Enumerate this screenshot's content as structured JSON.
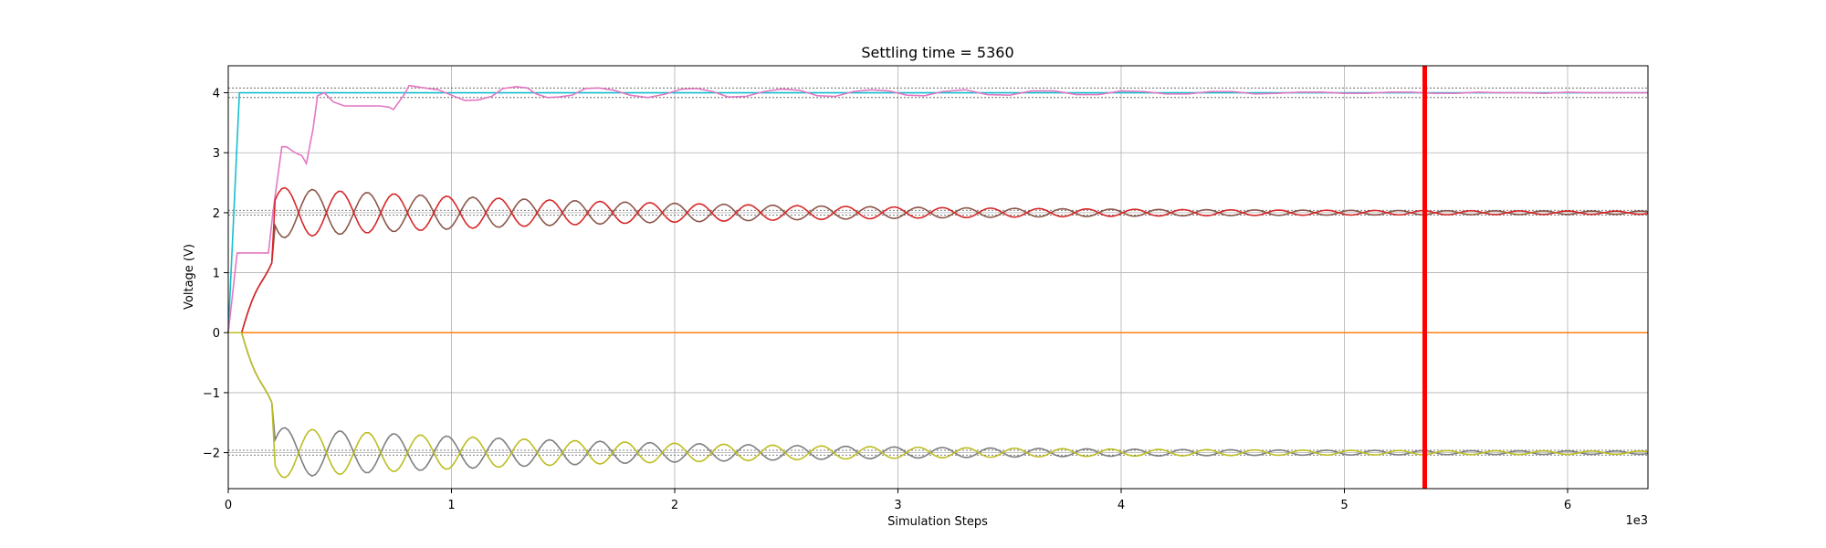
{
  "chart_data": {
    "type": "line",
    "title": "Settling time = 5360",
    "xlabel": "Simulation Steps",
    "ylabel": "Voltage (V)",
    "x_offset_label": "1e3",
    "xlim": [
      0,
      6360
    ],
    "ylim": [
      -2.6,
      4.45
    ],
    "xticks": [
      0,
      1000,
      2000,
      3000,
      4000,
      5000,
      6000
    ],
    "xtick_labels": [
      "0",
      "1",
      "2",
      "3",
      "4",
      "5",
      "6"
    ],
    "yticks": [
      -2,
      -1,
      0,
      1,
      2,
      3,
      4
    ],
    "ytick_labels": [
      "−2",
      "−1",
      "0",
      "1",
      "2",
      "3",
      "4"
    ],
    "grid": true,
    "settling_line": {
      "x": 5360,
      "color": "#ff0000"
    },
    "tolerance_bands": [
      {
        "center": 4,
        "band": [
          3.92,
          4.08
        ]
      },
      {
        "center": 2,
        "band": [
          1.96,
          2.04
        ]
      },
      {
        "center": -2,
        "band": [
          -2.04,
          -1.96
        ]
      }
    ],
    "series": [
      {
        "color": "#17becf",
        "x": [
          0,
          50,
          6360
        ],
        "y": [
          0,
          4.0,
          4.0
        ]
      },
      {
        "color": "#ff7f0e",
        "x": [
          0,
          6360
        ],
        "y": [
          0,
          0
        ]
      },
      {
        "color": "#e377c2",
        "x": [
          0,
          40,
          180,
          200,
          240,
          260,
          300,
          330,
          350,
          380,
          400,
          430,
          470,
          520,
          600,
          680,
          720,
          740,
          790,
          810,
          880,
          940,
          1000,
          1060,
          1120,
          1180,
          1230,
          1290,
          1340,
          1380,
          1430,
          1480,
          1540,
          1600,
          1660,
          1730,
          1800,
          1880,
          1960,
          2030,
          2100,
          2170,
          2240,
          2320,
          2400,
          2480,
          2560,
          2640,
          2720,
          2800,
          2880,
          2960,
          3040,
          3120,
          3200,
          3300,
          3400,
          3500,
          3600,
          3700,
          3800,
          3900,
          4000,
          4100,
          4200,
          4300,
          4400,
          4500,
          4600,
          4700,
          4800,
          4900,
          5000,
          5100,
          5200,
          5300,
          5400,
          5500,
          5600,
          5700,
          5800,
          5900,
          6000,
          6100,
          6200,
          6360
        ],
        "y": [
          0,
          1.33,
          1.33,
          2.0,
          3.1,
          3.1,
          3.0,
          2.95,
          2.82,
          3.4,
          3.95,
          4.0,
          3.85,
          3.78,
          3.78,
          3.78,
          3.76,
          3.72,
          3.98,
          4.12,
          4.08,
          4.05,
          3.96,
          3.87,
          3.88,
          3.94,
          4.07,
          4.1,
          4.08,
          3.98,
          3.92,
          3.93,
          3.96,
          4.07,
          4.08,
          4.04,
          3.96,
          3.92,
          3.98,
          4.06,
          4.07,
          4.02,
          3.93,
          3.94,
          4.02,
          4.06,
          4.04,
          3.95,
          3.94,
          4.02,
          4.05,
          4.03,
          3.96,
          3.95,
          4.02,
          4.05,
          3.97,
          3.96,
          4.03,
          4.03,
          3.97,
          3.97,
          4.03,
          4.02,
          3.98,
          3.98,
          4.02,
          4.02,
          3.98,
          3.99,
          4.01,
          4.01,
          3.99,
          3.99,
          4.01,
          4.01,
          3.99,
          3.99,
          4.01,
          4.0,
          4.0,
          3.99,
          4.01,
          4.0,
          4.0,
          4.0
        ]
      }
    ]
  }
}
